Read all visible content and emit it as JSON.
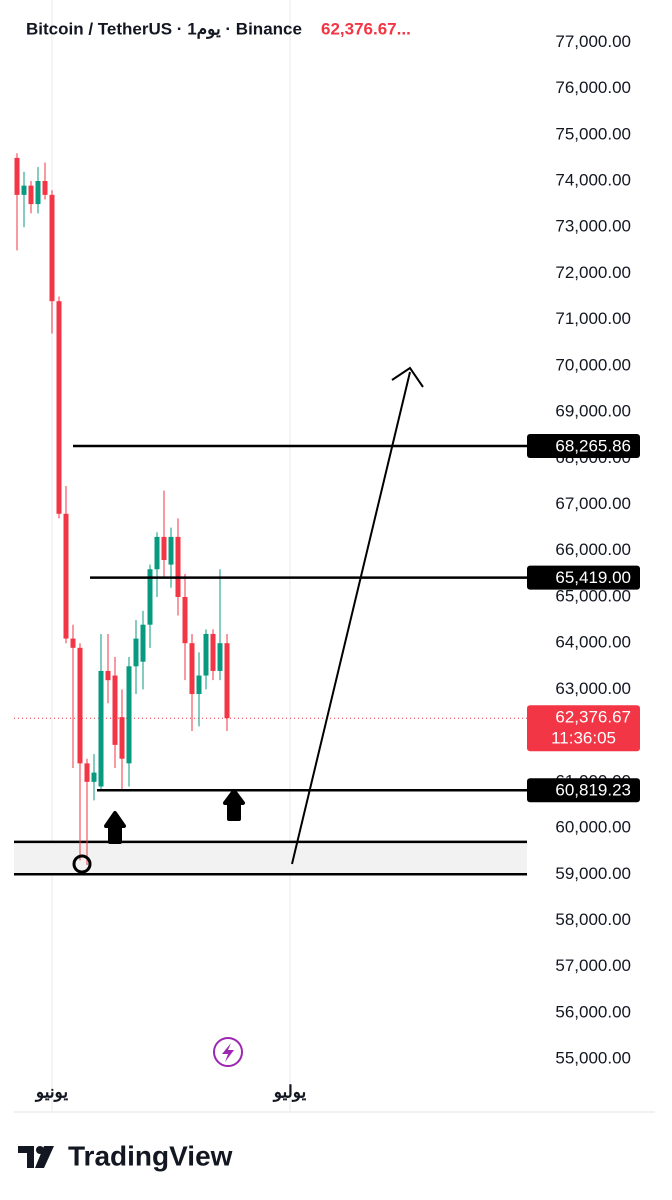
{
  "chart_data": {
    "type": "candlestick",
    "title": "Bitcoin / TetherUS · 1يوم · Binance",
    "header_price": "62,376.67...",
    "categories": [
      null,
      null,
      null,
      null,
      null,
      "يونيو",
      null,
      null,
      null,
      null,
      null,
      null,
      null,
      null,
      null,
      null,
      null,
      null,
      null,
      null,
      null,
      null,
      null,
      null,
      null,
      null,
      null,
      null,
      null,
      null,
      null,
      null,
      null,
      null,
      null,
      null,
      null,
      null,
      null,
      "يوليو"
    ],
    "open": [
      74500,
      73700,
      73900,
      73500,
      74000,
      73700,
      71400,
      66800,
      64100,
      63900,
      61400,
      61000,
      60900,
      63400,
      63300,
      62400,
      61400,
      63500,
      63600,
      64400,
      65600,
      66300,
      65700,
      66300,
      65000,
      64000,
      62900,
      63300,
      64200,
      63400,
      64000,
      null,
      null,
      null,
      null,
      null,
      null,
      null,
      null,
      null
    ],
    "high": [
      74600,
      74200,
      74000,
      74300,
      74400,
      73800,
      71500,
      67400,
      64400,
      64000,
      61500,
      61600,
      64200,
      64200,
      63700,
      63000,
      63700,
      64500,
      64700,
      65700,
      66400,
      67300,
      66500,
      66700,
      65500,
      64200,
      63800,
      64300,
      64300,
      65600,
      64200,
      null,
      null,
      null,
      null,
      null,
      null,
      null,
      null,
      null
    ],
    "low": [
      72500,
      73000,
      73300,
      73300,
      73600,
      70700,
      66700,
      64000,
      61300,
      59300,
      59200,
      60600,
      60800,
      62700,
      61300,
      60800,
      60900,
      62900,
      63000,
      63900,
      65000,
      65400,
      65200,
      64600,
      63200,
      62100,
      62200,
      63000,
      63200,
      63200,
      62100,
      null,
      null,
      null,
      null,
      null,
      null,
      null,
      null,
      null
    ],
    "close": [
      73700,
      73900,
      73500,
      74000,
      73700,
      71400,
      66800,
      64100,
      63900,
      61400,
      61000,
      61200,
      63400,
      63200,
      61800,
      61500,
      63500,
      64100,
      64400,
      65600,
      66300,
      65800,
      66300,
      65000,
      64000,
      62900,
      63300,
      64200,
      63400,
      64000,
      62376.67,
      null,
      null,
      null,
      null,
      null,
      null,
      null,
      null,
      null
    ],
    "up_color": "#089981",
    "down_color": "#f23645",
    "ylim": [
      53900,
      77700
    ],
    "yticks": [
      {
        "value": 55000,
        "label": "55,000.00"
      },
      {
        "value": 56000,
        "label": "56,000.00"
      },
      {
        "value": 57000,
        "label": "57,000.00"
      },
      {
        "value": 58000,
        "label": "58,000.00"
      },
      {
        "value": 59000,
        "label": "59,000.00"
      },
      {
        "value": 60000,
        "label": "60,000.00"
      },
      {
        "value": 61000,
        "label": "61,000.00"
      },
      {
        "value": 62000,
        "label": "62,000.00"
      },
      {
        "value": 63000,
        "label": "63,000.00"
      },
      {
        "value": 64000,
        "label": "64,000.00"
      },
      {
        "value": 65000,
        "label": "65,000.00"
      },
      {
        "value": 66000,
        "label": "66,000.00"
      },
      {
        "value": 67000,
        "label": "67,000.00"
      },
      {
        "value": 68000,
        "label": "68,000.00"
      },
      {
        "value": 69000,
        "label": "69,000.00"
      },
      {
        "value": 70000,
        "label": "70,000.00"
      },
      {
        "value": 71000,
        "label": "71,000.00"
      },
      {
        "value": 72000,
        "label": "72,000.00"
      },
      {
        "value": 73000,
        "label": "73,000.00"
      },
      {
        "value": 74000,
        "label": "74,000.00"
      },
      {
        "value": 75000,
        "label": "75,000.00"
      },
      {
        "value": 76000,
        "label": "76,000.00"
      },
      {
        "value": 77000,
        "label": "77,000.00"
      }
    ],
    "grid": true,
    "levels": [
      {
        "value": 68265.86,
        "label": "68,265.86"
      },
      {
        "value": 65419.0,
        "label": "65,419.00"
      },
      {
        "value": 60819.23,
        "label": "60,819.23"
      }
    ],
    "zone": [
      59000,
      59700
    ],
    "last_price": {
      "value": 62376.67,
      "label": "62,376.67",
      "countdown": "11:36:05"
    }
  },
  "brand": "TradingView"
}
